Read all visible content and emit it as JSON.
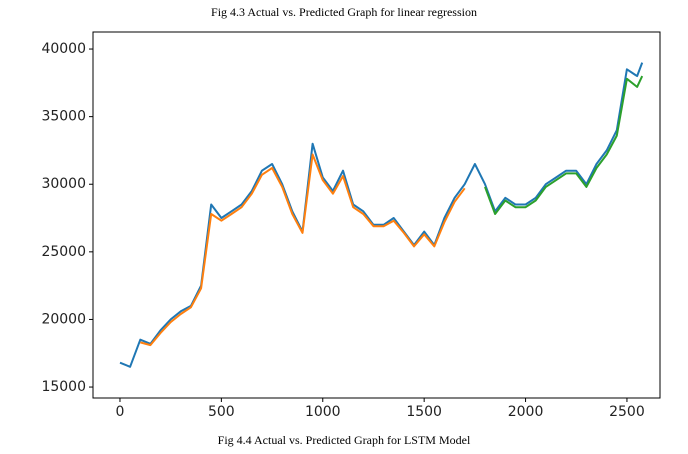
{
  "chart_data": {
    "type": "line",
    "title": "Fig 4.3 Actual vs. Predicted Graph for linear regression",
    "caption": "Fig 4.4 Actual vs. Predicted Graph for LSTM Model",
    "x": [
      0,
      50,
      100,
      150,
      200,
      250,
      300,
      350,
      400,
      450,
      500,
      550,
      600,
      650,
      700,
      750,
      800,
      850,
      900,
      950,
      1000,
      1050,
      1100,
      1150,
      1200,
      1250,
      1300,
      1350,
      1400,
      1450,
      1500,
      1550,
      1600,
      1650,
      1700,
      1750,
      1800,
      1850,
      1900,
      1950,
      2000,
      2050,
      2100,
      2150,
      2200,
      2250,
      2300,
      2350,
      2400,
      2450,
      2500,
      2550,
      2575
    ],
    "series": [
      {
        "color": "#1f77b4",
        "values": [
          16800,
          16500,
          18500,
          18200,
          19200,
          20000,
          20600,
          21000,
          22500,
          28500,
          27500,
          28000,
          28500,
          29500,
          31000,
          31500,
          30000,
          28000,
          26500,
          33000,
          30500,
          29500,
          31000,
          28500,
          28000,
          27000,
          27000,
          27500,
          26500,
          25500,
          26500,
          25500,
          27500,
          29000,
          30000,
          31500,
          30000,
          28000,
          29000,
          28500,
          28500,
          29000,
          30000,
          30500,
          31000,
          31000,
          30000,
          31500,
          32500,
          34000,
          38500,
          38000,
          39000
        ]
      },
      {
        "color": "#ff7f0e",
        "values": [
          null,
          null,
          18300,
          18100,
          19000,
          19800,
          20400,
          20900,
          22300,
          27800,
          27300,
          27800,
          28300,
          29300,
          30700,
          31200,
          29800,
          27800,
          26400,
          32200,
          30300,
          29300,
          30600,
          28300,
          27800,
          26900,
          26900,
          27300,
          26400,
          25400,
          26300,
          25400,
          27200,
          28700,
          29700,
          null,
          null,
          null,
          null,
          null,
          null,
          null,
          null,
          null,
          null,
          null,
          null,
          null,
          null,
          null,
          null,
          null,
          null
        ]
      },
      {
        "color": "#2ca02c",
        "values": [
          null,
          null,
          null,
          null,
          null,
          null,
          null,
          null,
          null,
          null,
          null,
          null,
          null,
          null,
          null,
          null,
          null,
          null,
          null,
          null,
          null,
          null,
          null,
          null,
          null,
          null,
          null,
          null,
          null,
          null,
          null,
          null,
          null,
          null,
          null,
          null,
          29800,
          27800,
          28800,
          28300,
          28300,
          28800,
          29800,
          30300,
          30800,
          30800,
          29800,
          31200,
          32200,
          33600,
          37800,
          37200,
          38000
        ]
      }
    ],
    "xlim": [
      -133,
      2663
    ],
    "ylim": [
      14190,
      41260
    ],
    "xticks": [
      0,
      500,
      1000,
      1500,
      2000,
      2500
    ],
    "yticks": [
      15000,
      20000,
      25000,
      30000,
      35000,
      40000
    ]
  }
}
